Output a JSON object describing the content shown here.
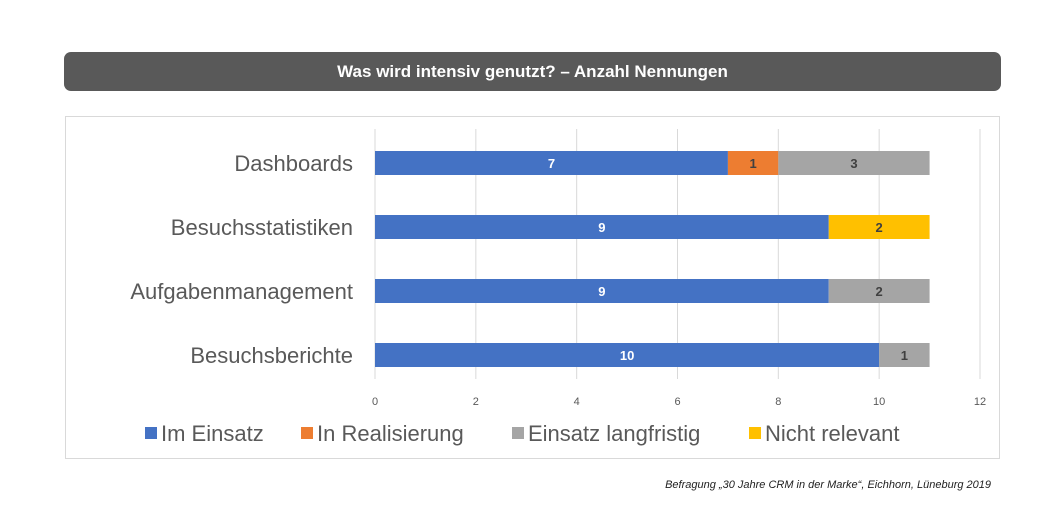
{
  "title": "Was wird intensiv genutzt? – Anzahl Nennungen",
  "source_note": "Befragung „30 Jahre CRM in der Marke“, Eichhorn, Lüneburg 2019",
  "chart_data": {
    "type": "bar",
    "orientation": "horizontal",
    "stacked": true,
    "categories": [
      "Dashboards",
      "Besuchsstatistiken",
      "Aufgabenmanagement",
      "Besuchsberichte"
    ],
    "series": [
      {
        "name": "Im Einsatz",
        "color": "#4472C4",
        "values": [
          7,
          9,
          9,
          10
        ]
      },
      {
        "name": "In Realisierung",
        "color": "#ED7D31",
        "values": [
          1,
          0,
          0,
          0
        ]
      },
      {
        "name": "Einsatz langfristig",
        "color": "#A5A5A5",
        "values": [
          3,
          0,
          2,
          1
        ]
      },
      {
        "name": "Nicht relevant",
        "color": "#FFC000",
        "values": [
          0,
          2,
          0,
          0
        ]
      }
    ],
    "xlim": [
      0,
      12
    ],
    "xticks": [
      0,
      2,
      4,
      6,
      8,
      10,
      12
    ],
    "grid": true,
    "legend_position": "bottom",
    "data_labels": true
  }
}
